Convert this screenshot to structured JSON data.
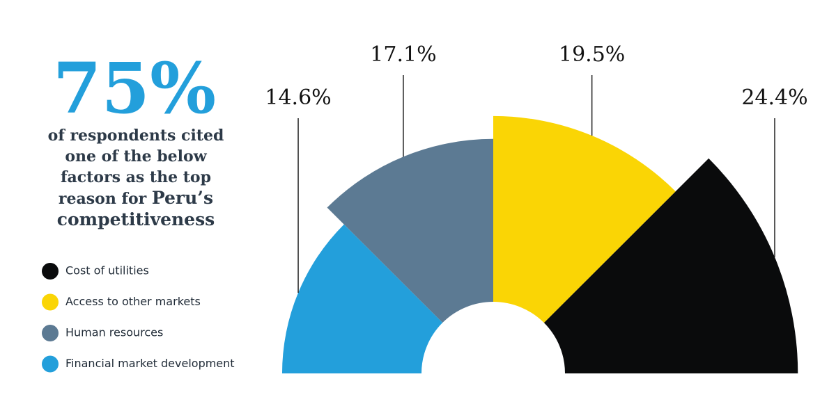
{
  "chart_data": {
    "type": "polar-area",
    "title": "75%",
    "subtitle": "of respondents cited one of the below factors as the top reason for",
    "subtitle_emphasis": "Peru’s competitiveness",
    "categories": [
      "Cost of utilities",
      "Access to other markets",
      "Human resources",
      "Financial market development"
    ],
    "values": [
      24.4,
      19.5,
      17.1,
      14.6
    ],
    "value_labels": [
      "24.4%",
      "19.5%",
      "17.1%",
      "14.6%"
    ],
    "colors": [
      "#0a0b0c",
      "#fad505",
      "#5c7a93",
      "#239fdb"
    ]
  }
}
